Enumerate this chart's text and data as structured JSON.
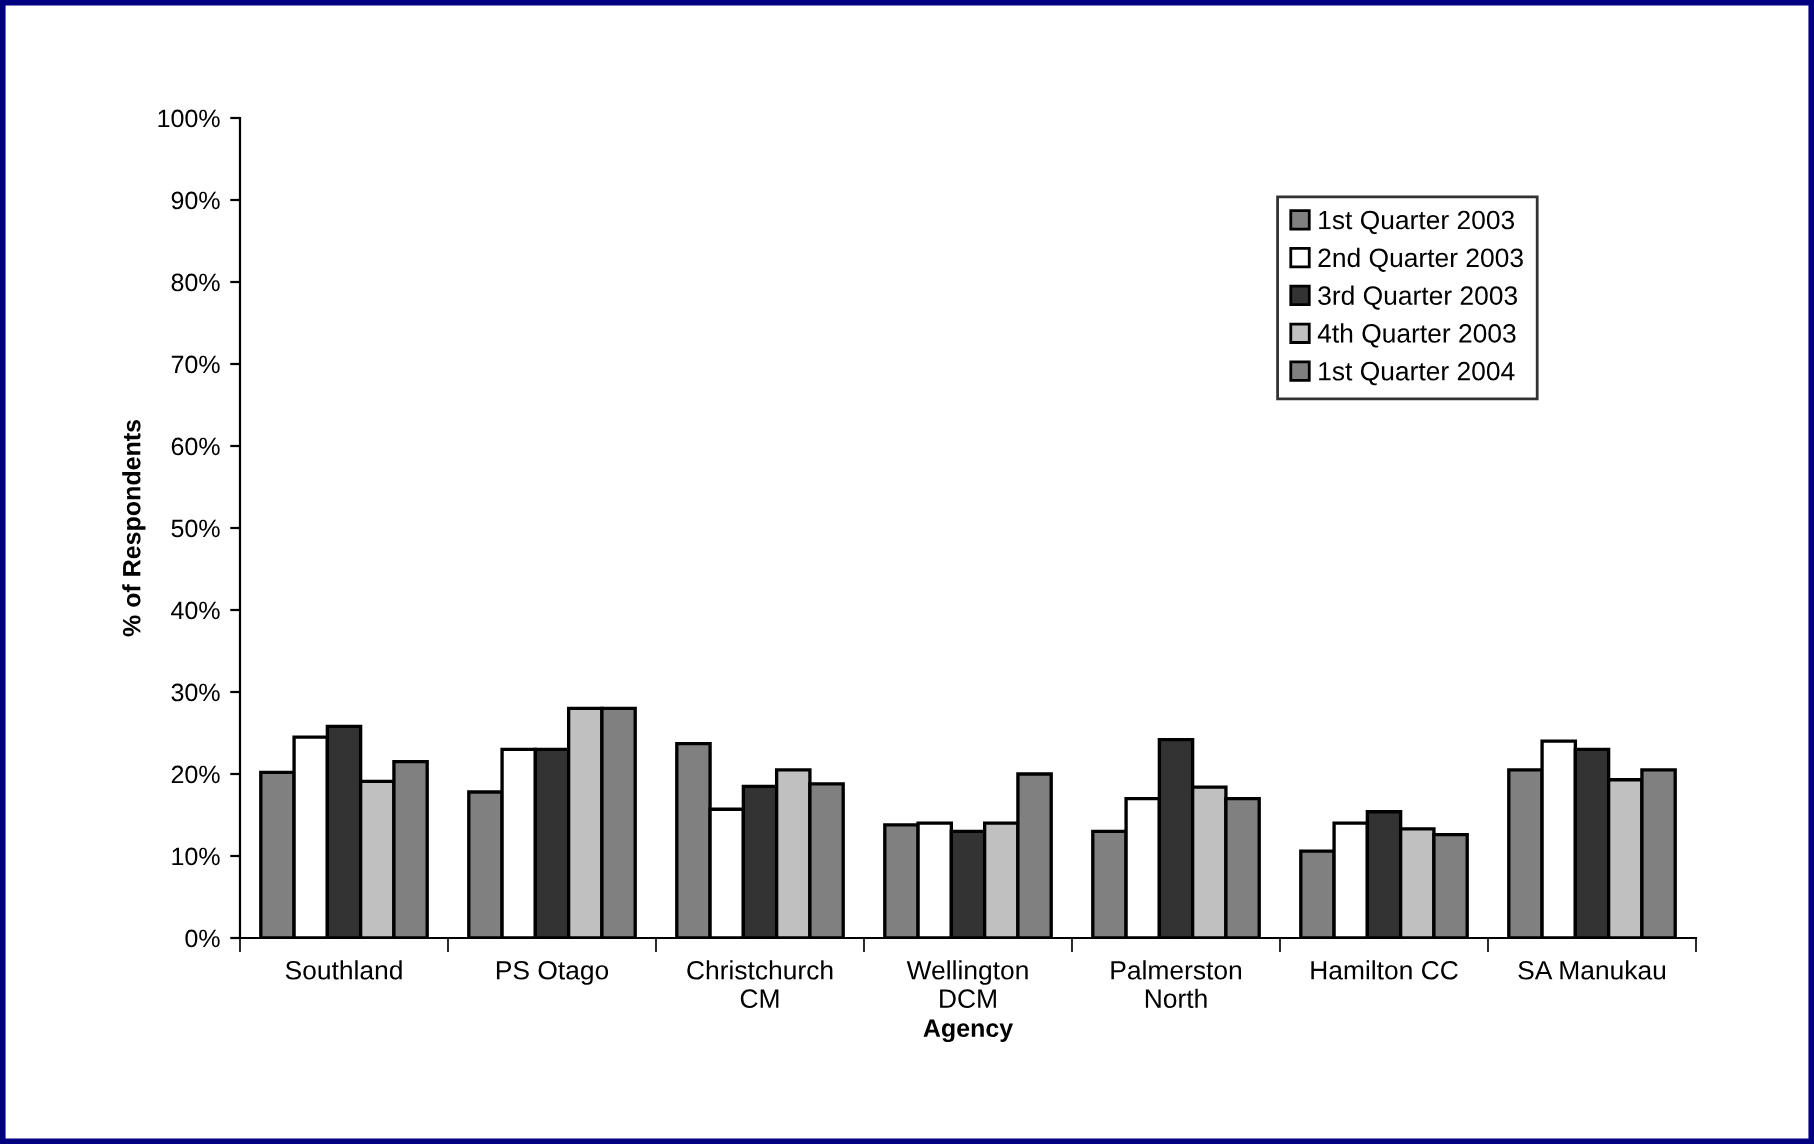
{
  "chart_data": {
    "type": "bar",
    "xlabel": "Agency",
    "ylabel": "% of Respondents",
    "categories": [
      "Southland",
      "PS Otago",
      "Christchurch\nCM",
      "Wellington\nDCM",
      "Palmerston\nNorth",
      "Hamilton CC",
      "SA Manukau"
    ],
    "series": [
      {
        "name": "1st Quarter 2003",
        "color": "#808080",
        "values": [
          20.2,
          17.8,
          23.7,
          13.8,
          13,
          10.6,
          20.5
        ]
      },
      {
        "name": "2nd Quarter 2003",
        "color": "#ffffff",
        "values": [
          24.5,
          23,
          15.7,
          14,
          17,
          14,
          24
        ]
      },
      {
        "name": "3rd Quarter 2003",
        "color": "#333333",
        "values": [
          25.8,
          23,
          18.5,
          13,
          24.2,
          15.4,
          23
        ]
      },
      {
        "name": "4th Quarter 2003",
        "color": "#c0c0c0",
        "values": [
          19.1,
          28,
          20.5,
          14,
          18.4,
          13.3,
          19.3
        ]
      },
      {
        "name": "1st Quarter 2004",
        "color": "#808080",
        "values": [
          21.5,
          28,
          18.8,
          20,
          17,
          12.6,
          20.5
        ]
      }
    ],
    "ylim": [
      0,
      100
    ],
    "yticks": [
      {
        "value": 0,
        "label": "0%"
      },
      {
        "value": 10,
        "label": "10%"
      },
      {
        "value": 20,
        "label": "20%"
      },
      {
        "value": 30,
        "label": "30%"
      },
      {
        "value": 40,
        "label": "40%"
      },
      {
        "value": 50,
        "label": "50%"
      },
      {
        "value": 60,
        "label": "60%"
      },
      {
        "value": 70,
        "label": "70%"
      },
      {
        "value": 80,
        "label": "80%"
      },
      {
        "value": 90,
        "label": "90%"
      },
      {
        "value": 100,
        "label": "100%"
      }
    ],
    "grid": false,
    "legend": "top right"
  }
}
